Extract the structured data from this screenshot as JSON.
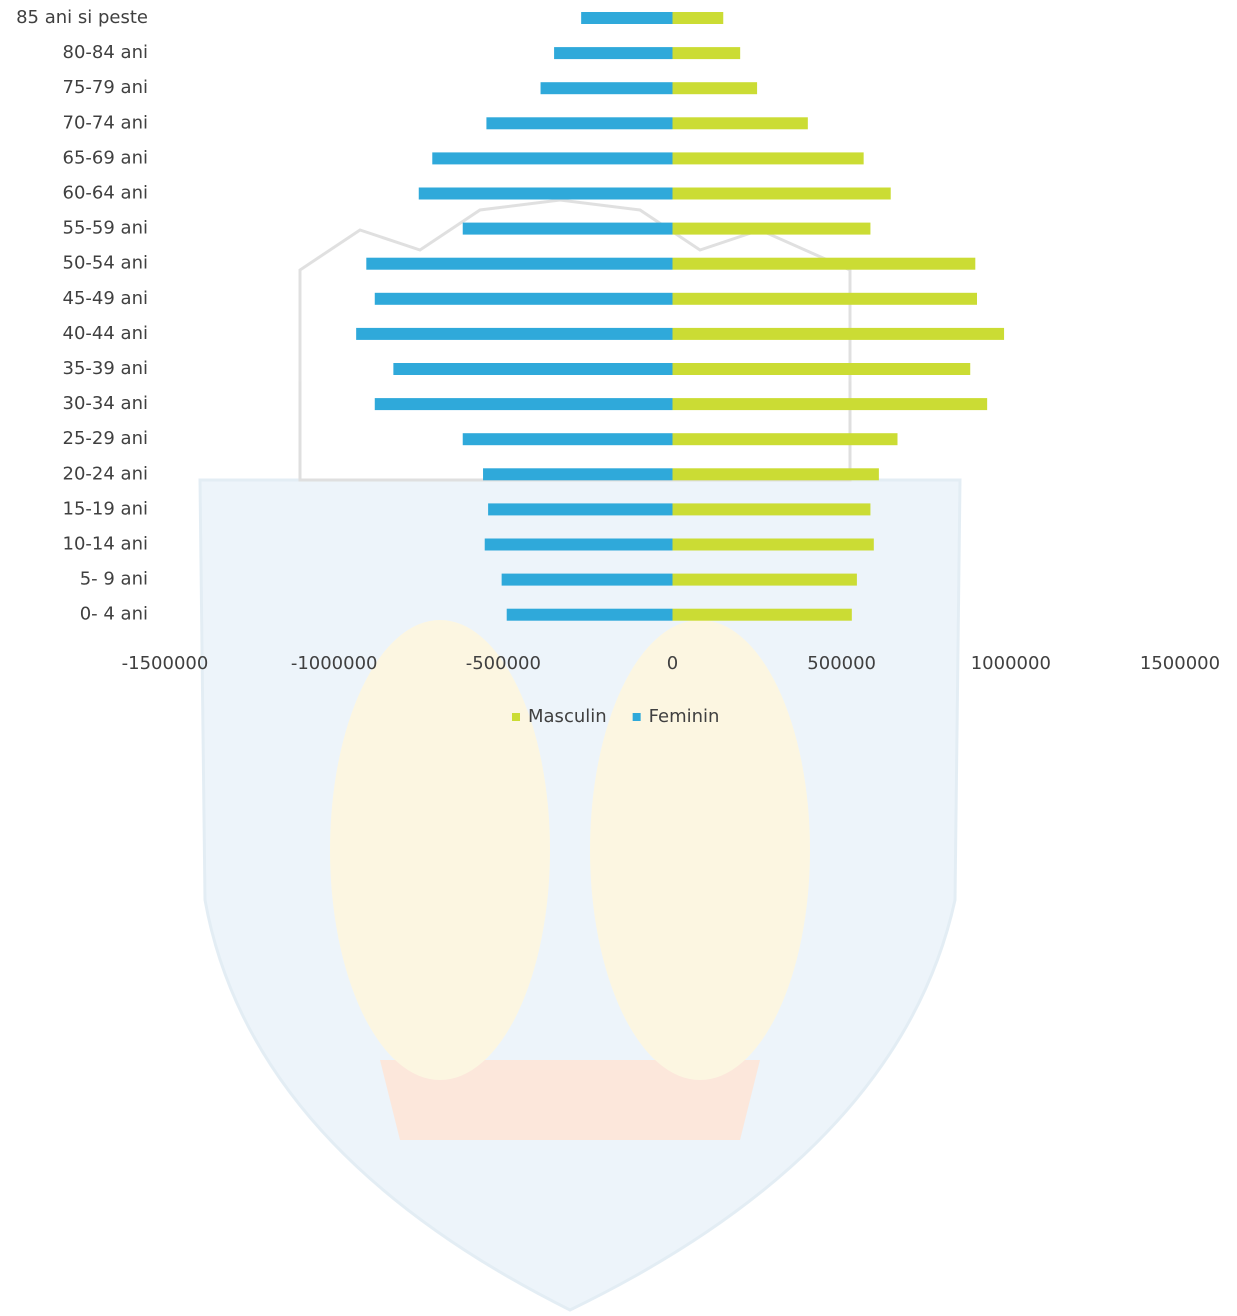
{
  "chart_data": {
    "type": "bar",
    "orientation": "horizontal",
    "categories": [
      "85 ani si peste",
      "80-84 ani",
      "75-79 ani",
      "70-74 ani",
      "65-69 ani",
      "60-64 ani",
      "55-59 ani",
      "50-54 ani",
      "45-49 ani",
      "40-44 ani",
      "35-39 ani",
      "30-34 ani",
      "25-29 ani",
      "20-24 ani",
      "15-19 ani",
      "10-14 ani",
      "5- 9 ani",
      "0- 4 ani"
    ],
    "series": [
      {
        "name": "Masculin",
        "color": "#cbdc34",
        "values": [
          150000,
          200000,
          250000,
          400000,
          565000,
          645000,
          585000,
          895000,
          900000,
          980000,
          880000,
          930000,
          665000,
          610000,
          585000,
          595000,
          545000,
          530000
        ]
      },
      {
        "name": "Feminin",
        "color": "#2fa9da",
        "values": [
          -270000,
          -350000,
          -390000,
          -550000,
          -710000,
          -750000,
          -620000,
          -905000,
          -880000,
          -935000,
          -825000,
          -880000,
          -620000,
          -560000,
          -545000,
          -555000,
          -505000,
          -490000
        ]
      }
    ],
    "xlim": [
      -1500000,
      1500000
    ],
    "xticks": [
      -1500000,
      -1000000,
      -500000,
      0,
      500000,
      1000000,
      1500000
    ],
    "legend": "bottom"
  }
}
